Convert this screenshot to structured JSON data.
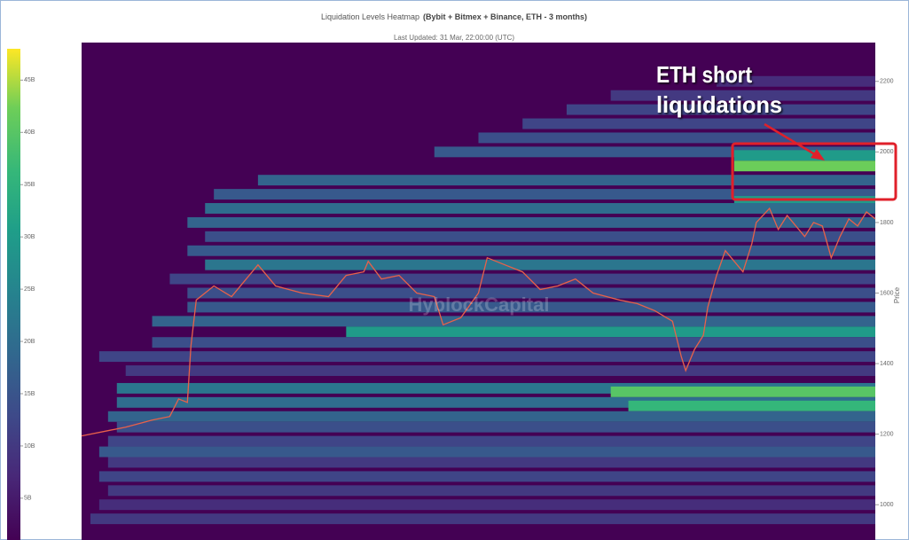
{
  "chart_data": {
    "type": "heatmap",
    "title": "Liquidation Levels Heatmap",
    "title_detail": "(Bybit + Bitmex + Binance, ETH - 3 months)",
    "subtitle": "Last Updated: 31 Mar, 22:00:00 (UTC)",
    "y_label": "Price",
    "ylim": [
      900,
      2310
    ],
    "yticks": [
      1000,
      1200,
      1400,
      1600,
      1800,
      2000,
      2200
    ],
    "xlim": [
      0,
      90
    ],
    "colorbar": {
      "clim": [
        1,
        48
      ],
      "ticks": [
        {
          "value": 5,
          "label": "5B"
        },
        {
          "value": 10,
          "label": "10B"
        },
        {
          "value": 15,
          "label": "15B"
        },
        {
          "value": 20,
          "label": "20B"
        },
        {
          "value": 25,
          "label": "25B"
        },
        {
          "value": 30,
          "label": "30B"
        },
        {
          "value": 35,
          "label": "35B"
        },
        {
          "value": 40,
          "label": "40B"
        },
        {
          "value": 45,
          "label": "45B"
        }
      ]
    },
    "bands": [
      {
        "price": 2200,
        "start": 72,
        "value": 8
      },
      {
        "price": 2160,
        "start": 60,
        "value": 10
      },
      {
        "price": 2120,
        "start": 55,
        "value": 12
      },
      {
        "price": 2080,
        "start": 50,
        "value": 12
      },
      {
        "price": 2040,
        "start": 45,
        "value": 14
      },
      {
        "price": 2000,
        "start": 40,
        "value": 16
      },
      {
        "price": 1990,
        "start": 74,
        "value": 30
      },
      {
        "price": 1960,
        "start": 74,
        "value": 42
      },
      {
        "price": 1920,
        "start": 20,
        "value": 18
      },
      {
        "price": 1880,
        "start": 15,
        "value": 16
      },
      {
        "price": 1860,
        "start": 74,
        "value": 30
      },
      {
        "price": 1840,
        "start": 14,
        "value": 20
      },
      {
        "price": 1800,
        "start": 12,
        "value": 18
      },
      {
        "price": 1760,
        "start": 14,
        "value": 14
      },
      {
        "price": 1720,
        "start": 12,
        "value": 16
      },
      {
        "price": 1680,
        "start": 14,
        "value": 22
      },
      {
        "price": 1640,
        "start": 10,
        "value": 12
      },
      {
        "price": 1600,
        "start": 12,
        "value": 14
      },
      {
        "price": 1560,
        "start": 12,
        "value": 16
      },
      {
        "price": 1520,
        "start": 8,
        "value": 18
      },
      {
        "price": 1490,
        "start": 30,
        "value": 30
      },
      {
        "price": 1460,
        "start": 8,
        "value": 14
      },
      {
        "price": 1420,
        "start": 2,
        "value": 12
      },
      {
        "price": 1380,
        "start": 5,
        "value": 10
      },
      {
        "price": 1330,
        "start": 4,
        "value": 22
      },
      {
        "price": 1320,
        "start": 60,
        "value": 40
      },
      {
        "price": 1290,
        "start": 4,
        "value": 20
      },
      {
        "price": 1280,
        "start": 62,
        "value": 36
      },
      {
        "price": 1250,
        "start": 3,
        "value": 18
      },
      {
        "price": 1220,
        "start": 4,
        "value": 14
      },
      {
        "price": 1180,
        "start": 3,
        "value": 12
      },
      {
        "price": 1150,
        "start": 2,
        "value": 16
      },
      {
        "price": 1120,
        "start": 3,
        "value": 10
      },
      {
        "price": 1080,
        "start": 2,
        "value": 12
      },
      {
        "price": 1040,
        "start": 3,
        "value": 10
      },
      {
        "price": 1000,
        "start": 2,
        "value": 8
      },
      {
        "price": 960,
        "start": 1,
        "value": 10
      }
    ],
    "price": {
      "color": "#e8614a",
      "x": [
        0,
        3,
        5,
        8,
        10,
        11,
        12,
        12.4,
        13,
        15,
        17,
        20,
        22,
        25,
        28,
        30,
        32,
        32.5,
        34,
        36,
        38,
        40,
        41,
        43,
        45,
        46,
        48,
        50,
        52,
        54,
        56,
        58,
        61,
        63,
        65,
        67,
        68,
        68.5,
        69.5,
        70.5,
        71,
        72,
        73,
        74,
        75,
        76,
        76.5,
        78,
        79,
        80,
        82,
        83,
        84,
        85,
        86,
        87,
        88,
        89,
        90
      ],
      "values": [
        1195,
        1210,
        1220,
        1240,
        1250,
        1300,
        1290,
        1450,
        1580,
        1620,
        1590,
        1680,
        1620,
        1600,
        1590,
        1650,
        1660,
        1690,
        1640,
        1650,
        1600,
        1590,
        1510,
        1530,
        1600,
        1700,
        1680,
        1660,
        1610,
        1620,
        1640,
        1600,
        1580,
        1570,
        1550,
        1520,
        1420,
        1380,
        1440,
        1480,
        1560,
        1650,
        1720,
        1690,
        1660,
        1740,
        1800,
        1840,
        1780,
        1820,
        1760,
        1800,
        1790,
        1700,
        1760,
        1810,
        1790,
        1830,
        1810
      ]
    },
    "annotation": [
      "ETH short",
      "liquidations"
    ],
    "watermark": "HyblockCapital"
  }
}
